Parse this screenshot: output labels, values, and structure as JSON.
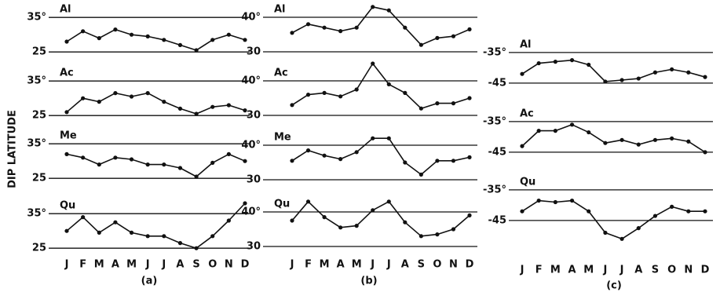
{
  "chart_data": {
    "type": "line",
    "y_label": "DIP LATITUDE",
    "color": "#111111",
    "columns": [
      {
        "caption": "(a)",
        "categories": [
          "J",
          "F",
          "M",
          "A",
          "M",
          "J",
          "J",
          "A",
          "S",
          "O",
          "N",
          "D"
        ],
        "panels": [
          {
            "title": "Al",
            "ylim": [
              23,
              38
            ],
            "yticks": [
              {
                "value": 35,
                "label": "35°"
              },
              25
            ],
            "values": [
              28,
              31,
              29,
              31.5,
              30,
              29.5,
              28.5,
              27,
              25.5,
              28.5,
              30,
              28.5
            ]
          },
          {
            "title": "Ac",
            "ylim": [
              23,
              38
            ],
            "yticks": [
              {
                "value": 35,
                "label": "35°"
              },
              25
            ],
            "values": [
              26,
              30,
              29,
              31.5,
              30.5,
              31.5,
              29,
              27,
              25.5,
              27.5,
              28,
              26.5
            ]
          },
          {
            "title": "Me",
            "ylim": [
              23,
              38
            ],
            "yticks": [
              {
                "value": 35,
                "label": "35°"
              },
              25
            ],
            "values": [
              32,
              31,
              29,
              31,
              30.5,
              29,
              29,
              28,
              25.5,
              29.5,
              32,
              30
            ]
          },
          {
            "title": "Qu",
            "ylim": [
              23,
              38
            ],
            "yticks": [
              {
                "value": 35,
                "label": "35°"
              },
              25
            ],
            "values": [
              30,
              34,
              29.5,
              32.5,
              29.5,
              28.5,
              28.5,
              26.5,
              25,
              28.5,
              33,
              38
            ]
          }
        ]
      },
      {
        "caption": "(b)",
        "categories": [
          "J",
          "F",
          "M",
          "A",
          "M",
          "J",
          "J",
          "A",
          "S",
          "O",
          "N",
          "D"
        ],
        "panels": [
          {
            "title": "Al",
            "ylim": [
              29,
              45
            ],
            "yticks": [
              {
                "value": 40,
                "label": "40°"
              },
              30
            ],
            "values": [
              35.5,
              38,
              37,
              36,
              37,
              43,
              42,
              37,
              32,
              34,
              34.5,
              36.5
            ]
          },
          {
            "title": "Ac",
            "ylim": [
              29,
              45
            ],
            "yticks": [
              {
                "value": 40,
                "label": "40°"
              },
              30
            ],
            "values": [
              33,
              36,
              36.5,
              35.5,
              37.5,
              45,
              39,
              36.5,
              32,
              33.5,
              33.5,
              35
            ]
          },
          {
            "title": "Me",
            "ylim": [
              29,
              45
            ],
            "yticks": [
              {
                "value": 40,
                "label": "40°"
              },
              30
            ],
            "values": [
              35.5,
              38.5,
              37,
              36,
              38,
              42,
              42,
              35,
              31.5,
              35.5,
              35.5,
              36.5
            ]
          },
          {
            "title": "Qu",
            "ylim": [
              29,
              45
            ],
            "yticks": [
              {
                "value": 40,
                "label": "40°"
              },
              30
            ],
            "values": [
              37.5,
              43,
              38.5,
              35.5,
              36,
              40.5,
              43,
              37,
              33,
              33.5,
              35,
              39
            ]
          }
        ]
      },
      {
        "caption": "(c)",
        "categories": [
          "J",
          "F",
          "M",
          "A",
          "M",
          "J",
          "J",
          "A",
          "S",
          "O",
          "N",
          "D"
        ],
        "panels": [
          {
            "title": "Al",
            "ylim": [
              -47,
              -34
            ],
            "yticks": [
              {
                "value": -35,
                "label": "-35°"
              },
              -45
            ],
            "values": [
              -42,
              -38.5,
              -38,
              -37.5,
              -39,
              -44.5,
              -44,
              -43.5,
              -41.5,
              -40.5,
              -41.5,
              -43
            ]
          },
          {
            "title": "Ac",
            "ylim": [
              -47,
              -34
            ],
            "yticks": [
              {
                "value": -35,
                "label": "-35°"
              },
              -45
            ],
            "values": [
              -43,
              -38,
              -38,
              -36,
              -38.5,
              -42,
              -41,
              -42.5,
              -41,
              -40.5,
              -41.5,
              -45
            ]
          },
          {
            "title": "Qu",
            "ylim": [
              -53,
              -34
            ],
            "yticks": [
              {
                "value": -35,
                "label": "-35°"
              },
              -45
            ],
            "values": [
              -42,
              -38.5,
              -39,
              -38.5,
              -42,
              -49,
              -51,
              -47.5,
              -43.5,
              -40.5,
              -42,
              -42
            ]
          }
        ]
      }
    ]
  }
}
